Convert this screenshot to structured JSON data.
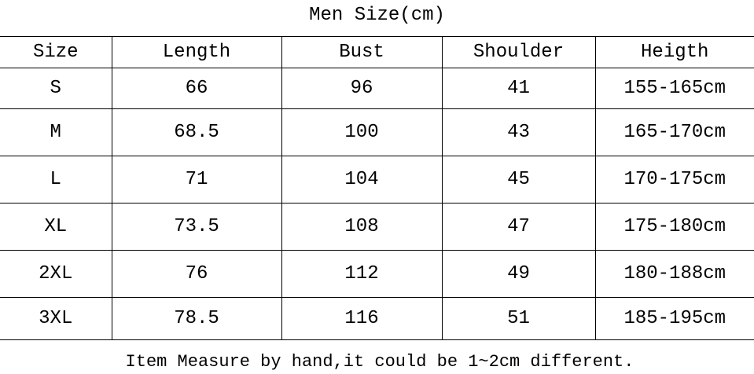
{
  "title": "Men Size(cm)",
  "table": {
    "header": [
      "Size",
      "Length",
      "Bust",
      "Shoulder",
      "Heigth"
    ],
    "rows": [
      [
        "S",
        66,
        96,
        41,
        "155-165cm"
      ],
      [
        "M",
        68.5,
        100,
        43,
        "165-170cm"
      ],
      [
        "L",
        71,
        104,
        45,
        "170-175cm"
      ],
      [
        "XL",
        73.5,
        108,
        47,
        "175-180cm"
      ],
      [
        "2XL",
        76,
        112,
        49,
        "180-188cm"
      ],
      [
        "3XL",
        78.5,
        116,
        51,
        "185-195cm"
      ]
    ]
  },
  "note": "Item Measure by hand,it could be 1~2cm different."
}
